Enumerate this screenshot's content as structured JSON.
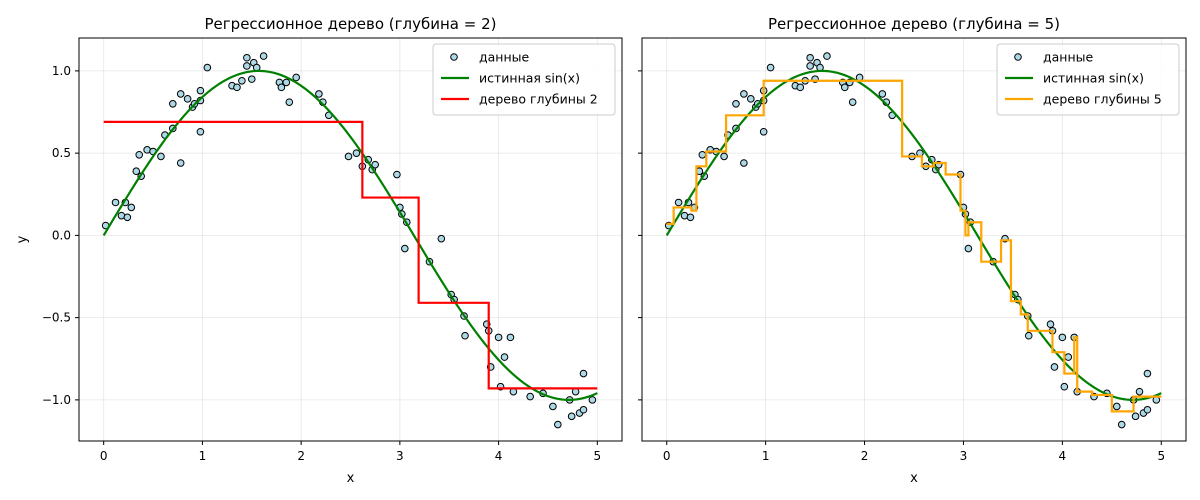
{
  "chart_data": [
    {
      "type": "line",
      "title": "Регрессионное дерево (глубина = 2)",
      "xlabel": "x",
      "ylabel": "y",
      "xlim": [
        -0.25,
        5.25
      ],
      "ylim": [
        -1.25,
        1.2
      ],
      "xticks": [
        0,
        1,
        2,
        3,
        4,
        5
      ],
      "xtick_labels": [
        "0",
        "1",
        "2",
        "3",
        "4",
        "5"
      ],
      "yticks": [
        1.0,
        0.5,
        0.0,
        -0.5,
        -1.0
      ],
      "ytick_labels": [
        "1.0",
        "0.5",
        "0.0",
        "−0.5",
        "−1.0"
      ],
      "grid": true,
      "legend_position": "top-right",
      "series": [
        {
          "name": "данные",
          "kind": "scatter",
          "color": "#add8e6",
          "edge_color": "#000000"
        },
        {
          "name": "истинная sin(x)",
          "kind": "function",
          "function": "sin",
          "x_range": [
            0,
            5
          ],
          "color": "#008000"
        },
        {
          "name": "дерево глубины 2",
          "kind": "step",
          "color": "#ff0000",
          "x": [
            0,
            2.62,
            2.62,
            3.19,
            3.19,
            3.9,
            3.9,
            5.0
          ],
          "y": [
            0.69,
            0.69,
            0.23,
            0.23,
            -0.41,
            -0.41,
            -0.93,
            -0.93
          ]
        }
      ]
    },
    {
      "type": "line",
      "title": "Регрессионное дерево (глубина = 5)",
      "xlabel": "x",
      "ylabel": "",
      "xlim": [
        -0.25,
        5.25
      ],
      "ylim": [
        -1.25,
        1.2
      ],
      "xticks": [
        0,
        1,
        2,
        3,
        4,
        5
      ],
      "xtick_labels": [
        "0",
        "1",
        "2",
        "3",
        "4",
        "5"
      ],
      "yticks": [
        1.0,
        0.5,
        0.0,
        -0.5,
        -1.0
      ],
      "ytick_labels": [],
      "grid": true,
      "legend_position": "top-right",
      "series": [
        {
          "name": "данные",
          "kind": "scatter",
          "color": "#add8e6",
          "edge_color": "#000000"
        },
        {
          "name": "истинная sin(x)",
          "kind": "function",
          "function": "sin",
          "x_range": [
            0,
            5
          ],
          "color": "#008000"
        },
        {
          "name": "дерево глубины 5",
          "kind": "step",
          "color": "#ffa500",
          "x": [
            0,
            0.07,
            0.07,
            0.25,
            0.25,
            0.3,
            0.3,
            0.4,
            0.4,
            0.6,
            0.6,
            0.98,
            0.98,
            2.38,
            2.38,
            2.58,
            2.58,
            2.7,
            2.7,
            2.82,
            2.82,
            2.97,
            2.97,
            3.02,
            3.02,
            3.05,
            3.05,
            3.18,
            3.18,
            3.38,
            3.38,
            3.48,
            3.48,
            3.58,
            3.58,
            3.65,
            3.65,
            3.9,
            3.9,
            4.02,
            4.02,
            4.12,
            4.12,
            4.15,
            4.15,
            4.3,
            4.3,
            4.5,
            4.5,
            4.72,
            4.72,
            5.0
          ],
          "y": [
            0.07,
            0.07,
            0.17,
            0.17,
            0.15,
            0.15,
            0.42,
            0.42,
            0.51,
            0.51,
            0.73,
            0.73,
            0.94,
            0.94,
            0.48,
            0.48,
            0.42,
            0.42,
            0.44,
            0.44,
            0.37,
            0.37,
            0.15,
            0.15,
            0.0,
            0.0,
            0.08,
            0.08,
            -0.16,
            -0.16,
            -0.03,
            -0.03,
            -0.4,
            -0.4,
            -0.48,
            -0.48,
            -0.58,
            -0.58,
            -0.71,
            -0.71,
            -0.84,
            -0.84,
            -0.62,
            -0.62,
            -0.95,
            -0.95,
            -0.97,
            -0.97,
            -1.07,
            -1.07,
            -0.98,
            -0.98
          ]
        }
      ]
    }
  ],
  "points": [
    [
      0.02,
      0.06
    ],
    [
      0.12,
      0.2
    ],
    [
      0.18,
      0.12
    ],
    [
      0.22,
      0.2
    ],
    [
      0.24,
      0.11
    ],
    [
      0.28,
      0.17
    ],
    [
      0.33,
      0.39
    ],
    [
      0.36,
      0.49
    ],
    [
      0.38,
      0.36
    ],
    [
      0.44,
      0.52
    ],
    [
      0.5,
      0.51
    ],
    [
      0.58,
      0.48
    ],
    [
      0.62,
      0.61
    ],
    [
      0.7,
      0.65
    ],
    [
      0.7,
      0.8
    ],
    [
      0.78,
      0.86
    ],
    [
      0.78,
      0.44
    ],
    [
      0.85,
      0.83
    ],
    [
      0.9,
      0.78
    ],
    [
      0.92,
      0.8
    ],
    [
      0.98,
      0.88
    ],
    [
      0.98,
      0.82
    ],
    [
      0.98,
      0.63
    ],
    [
      1.05,
      1.02
    ],
    [
      1.3,
      0.91
    ],
    [
      1.35,
      0.9
    ],
    [
      1.4,
      0.94
    ],
    [
      1.45,
      1.08
    ],
    [
      1.45,
      1.03
    ],
    [
      1.5,
      0.95
    ],
    [
      1.52,
      1.05
    ],
    [
      1.55,
      1.02
    ],
    [
      1.62,
      1.09
    ],
    [
      1.78,
      0.93
    ],
    [
      1.8,
      0.9
    ],
    [
      1.85,
      0.93
    ],
    [
      1.88,
      0.81
    ],
    [
      1.95,
      0.96
    ],
    [
      2.18,
      0.86
    ],
    [
      2.22,
      0.81
    ],
    [
      2.28,
      0.73
    ],
    [
      2.48,
      0.48
    ],
    [
      2.56,
      0.5
    ],
    [
      2.62,
      0.42
    ],
    [
      2.68,
      0.46
    ],
    [
      2.72,
      0.4
    ],
    [
      2.75,
      0.43
    ],
    [
      2.97,
      0.37
    ],
    [
      3.0,
      0.17
    ],
    [
      3.02,
      0.13
    ],
    [
      3.05,
      -0.08
    ],
    [
      3.07,
      0.08
    ],
    [
      3.3,
      -0.16
    ],
    [
      3.42,
      -0.02
    ],
    [
      3.52,
      -0.36
    ],
    [
      3.55,
      -0.39
    ],
    [
      3.65,
      -0.49
    ],
    [
      3.66,
      -0.61
    ],
    [
      3.88,
      -0.54
    ],
    [
      3.9,
      -0.58
    ],
    [
      3.92,
      -0.8
    ],
    [
      4.0,
      -0.62
    ],
    [
      4.02,
      -0.92
    ],
    [
      4.06,
      -0.74
    ],
    [
      4.12,
      -0.62
    ],
    [
      4.15,
      -0.95
    ],
    [
      4.32,
      -0.98
    ],
    [
      4.45,
      -0.96
    ],
    [
      4.55,
      -1.04
    ],
    [
      4.6,
      -1.15
    ],
    [
      4.72,
      -1.0
    ],
    [
      4.74,
      -1.1
    ],
    [
      4.78,
      -0.95
    ],
    [
      4.82,
      -1.08
    ],
    [
      4.86,
      -1.06
    ],
    [
      4.86,
      -0.84
    ],
    [
      4.95,
      -1.0
    ]
  ]
}
